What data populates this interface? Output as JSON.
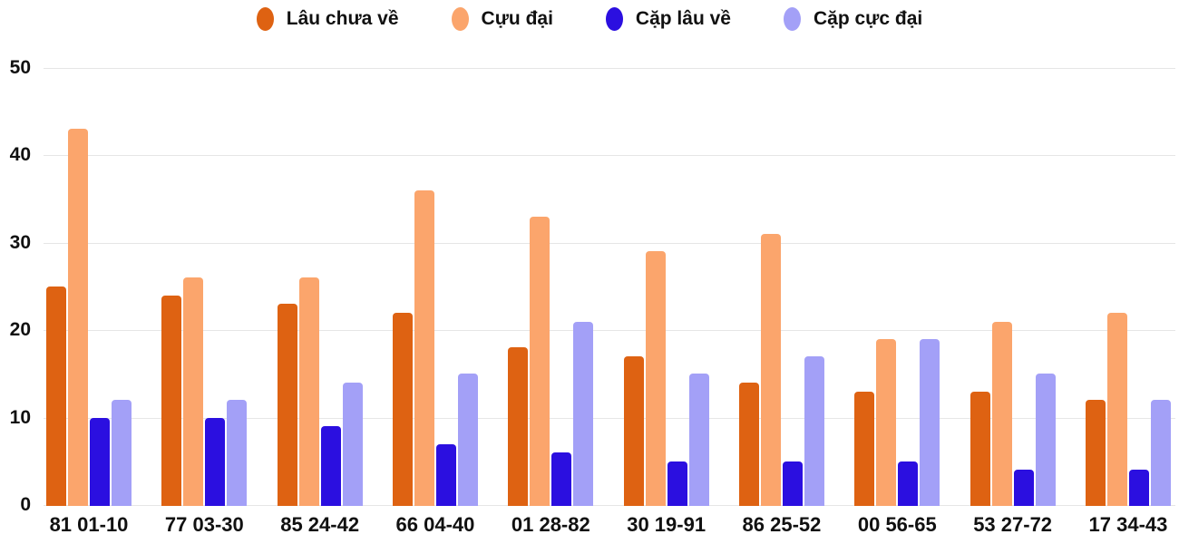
{
  "legend": {
    "items": [
      {
        "label": "Lâu chưa về",
        "color": "#DE6212"
      },
      {
        "label": "Cựu đại",
        "color": "#FBA56C"
      },
      {
        "label": "Cặp lâu về",
        "color": "#2B0FE0"
      },
      {
        "label": "Cặp cực đại",
        "color": "#A3A0F7"
      }
    ]
  },
  "chart_data": {
    "type": "bar",
    "title": "",
    "xlabel": "",
    "ylabel": "",
    "categories": [
      "81 01-10",
      "77 03-30",
      "85 24-42",
      "66 04-40",
      "01 28-82",
      "30 19-91",
      "86 25-52",
      "00 56-65",
      "53 27-72",
      "17 34-43"
    ],
    "series": [
      {
        "name": "Lâu chưa về",
        "color": "#DE6212",
        "values": [
          25,
          24,
          23,
          22,
          18,
          17,
          14,
          13,
          13,
          12
        ]
      },
      {
        "name": "Cựu đại",
        "color": "#FBA56C",
        "values": [
          43,
          26,
          26,
          36,
          33,
          29,
          31,
          19,
          21,
          22
        ]
      },
      {
        "name": "Cặp lâu về",
        "color": "#2B0FE0",
        "values": [
          10,
          10,
          9,
          7,
          6,
          5,
          5,
          5,
          4,
          4
        ]
      },
      {
        "name": "Cặp cực đại",
        "color": "#A3A0F7",
        "values": [
          12,
          12,
          14,
          15,
          21,
          15,
          17,
          19,
          15,
          12
        ]
      }
    ],
    "yticks": [
      0,
      10,
      20,
      30,
      40,
      50
    ],
    "ylim": [
      0,
      50
    ],
    "grid": true,
    "legend_position": "top",
    "gridline_color": "#e6e6e6",
    "text_color": "#111111"
  }
}
